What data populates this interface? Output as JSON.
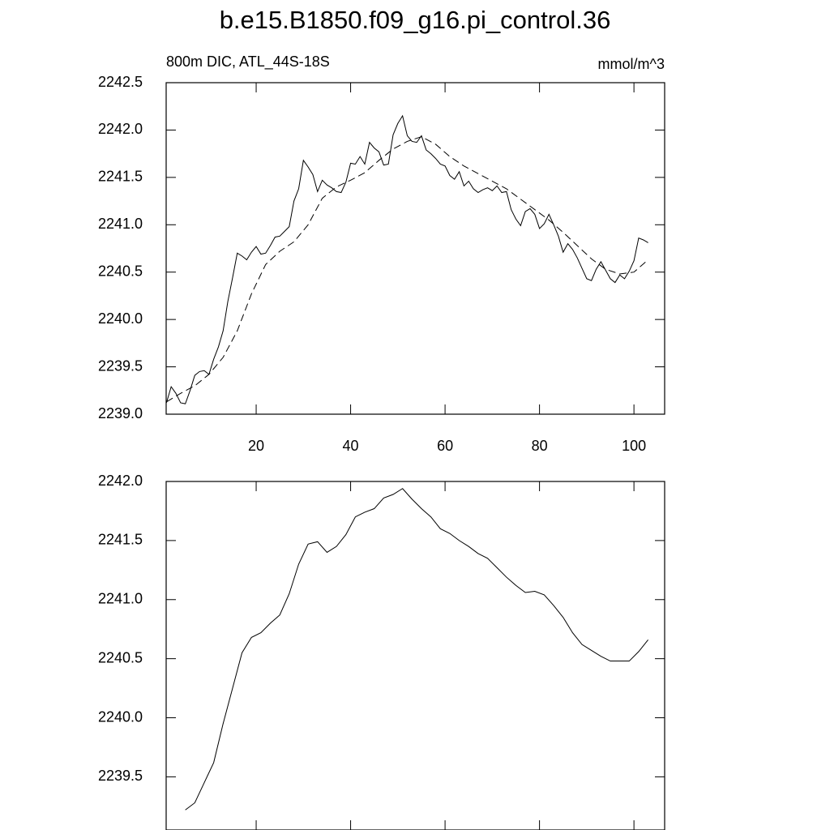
{
  "chart_data": [
    {
      "type": "line",
      "title": "b.e15.B1850.f09_g16.pi_control.36",
      "left_string": "800m DIC, ATL_44S-18S",
      "right_string": "mmol/m^3",
      "xlim": [
        0.94,
        106.5
      ],
      "xticks": [
        20,
        40,
        60,
        80,
        100
      ],
      "ylim": [
        2239.0,
        2242.5
      ],
      "yticks": [
        {
          "value": 2239.0,
          "label": "2239.0"
        },
        2239.5,
        {
          "value": 2240.0,
          "label": "2240.0"
        },
        2240.5,
        {
          "value": 2241.0,
          "label": "2241.0"
        },
        2241.5,
        {
          "value": 2242.0,
          "label": "2242.0"
        },
        2242.5
      ],
      "series": [
        {
          "color": "#000000",
          "linestyle": "solid",
          "x": [
            1,
            2,
            3,
            4,
            5,
            6,
            7,
            8,
            9,
            10,
            11,
            12,
            13,
            14,
            15,
            16,
            17,
            18,
            19,
            20,
            21,
            22,
            23,
            24,
            25,
            26,
            27,
            28,
            29,
            30,
            31,
            32,
            33,
            34,
            35,
            36,
            37,
            38,
            39,
            40,
            41,
            42,
            43,
            44,
            45,
            46,
            47,
            48,
            49,
            50,
            51,
            52,
            53,
            54,
            55,
            56,
            57,
            58,
            59,
            60,
            61,
            62,
            63,
            64,
            65,
            66,
            67,
            68,
            69,
            70,
            71,
            72,
            73,
            74,
            75,
            76,
            77,
            78,
            79,
            80,
            81,
            82,
            83,
            84,
            85,
            86,
            87,
            88,
            89,
            90,
            91,
            92,
            93,
            94,
            95,
            96,
            97,
            98,
            99,
            100,
            101,
            102,
            103
          ],
          "values": [
            2239.12,
            2239.29,
            2239.22,
            2239.12,
            2239.11,
            2239.25,
            2239.41,
            2239.45,
            2239.46,
            2239.42,
            2239.58,
            2239.71,
            2239.88,
            2240.19,
            2240.44,
            2240.7,
            2240.67,
            2240.63,
            2240.71,
            2240.77,
            2240.69,
            2240.7,
            2240.78,
            2240.87,
            2240.88,
            2240.93,
            2240.98,
            2241.25,
            2241.38,
            2241.68,
            2241.61,
            2241.53,
            2241.35,
            2241.47,
            2241.42,
            2241.39,
            2241.35,
            2241.34,
            2241.45,
            2241.65,
            2241.64,
            2241.72,
            2241.64,
            2241.87,
            2241.81,
            2241.77,
            2241.63,
            2241.64,
            2241.95,
            2242.07,
            2242.15,
            2241.94,
            2241.88,
            2241.87,
            2241.94,
            2241.79,
            2241.75,
            2241.7,
            2241.64,
            2241.62,
            2241.52,
            2241.48,
            2241.56,
            2241.41,
            2241.46,
            2241.38,
            2241.34,
            2241.37,
            2241.39,
            2241.36,
            2241.41,
            2241.34,
            2241.35,
            2241.16,
            2241.06,
            2240.99,
            2241.14,
            2241.17,
            2241.11,
            2240.96,
            2241.01,
            2241.11,
            2241.0,
            2240.88,
            2240.71,
            2240.8,
            2240.74,
            2240.65,
            2240.54,
            2240.43,
            2240.41,
            2240.53,
            2240.61,
            2240.52,
            2240.43,
            2240.39,
            2240.47,
            2240.43,
            2240.51,
            2240.62,
            2240.86,
            2240.84,
            2240.81
          ]
        },
        {
          "color": "#000000",
          "linestyle": "dashed",
          "x": [
            1,
            4,
            7,
            10,
            13,
            16,
            19,
            22,
            25,
            28,
            31,
            34,
            37,
            40,
            43,
            46,
            49,
            52,
            55,
            58,
            61,
            64,
            67,
            70,
            73,
            76,
            79,
            82,
            85,
            88,
            91,
            94,
            97,
            100,
            103
          ],
          "values": [
            2239.13,
            2239.22,
            2239.3,
            2239.42,
            2239.6,
            2239.88,
            2240.27,
            2240.58,
            2240.72,
            2240.82,
            2241.0,
            2241.28,
            2241.4,
            2241.47,
            2241.55,
            2241.68,
            2241.8,
            2241.88,
            2241.93,
            2241.85,
            2241.72,
            2241.62,
            2241.54,
            2241.46,
            2241.38,
            2241.27,
            2241.16,
            2241.05,
            2240.92,
            2240.78,
            2240.64,
            2240.53,
            2240.48,
            2240.5,
            2240.63
          ]
        }
      ]
    },
    {
      "type": "line",
      "xlim": [
        0.94,
        106.5
      ],
      "xticks": [
        20,
        40,
        60,
        80,
        100
      ],
      "ylim": [
        2239.05,
        2242.0
      ],
      "yticks": [
        2239.5,
        {
          "value": 2240.0,
          "label": "2240.0"
        },
        2240.5,
        {
          "value": 2241.0,
          "label": "2241.0"
        },
        2241.5,
        {
          "value": 2242.0,
          "label": "2242.0"
        }
      ],
      "series": [
        {
          "color": "#000000",
          "linestyle": "solid",
          "x": [
            5,
            7,
            9,
            11,
            13,
            15,
            17,
            19,
            21,
            23,
            25,
            27,
            29,
            31,
            33,
            35,
            37,
            39,
            41,
            43,
            45,
            47,
            49,
            51,
            53,
            55,
            57,
            59,
            61,
            63,
            65,
            67,
            69,
            71,
            73,
            75,
            77,
            79,
            81,
            83,
            85,
            87,
            89,
            91,
            93,
            95,
            97,
            99,
            101,
            103
          ],
          "values": [
            2239.22,
            2239.28,
            2239.45,
            2239.62,
            2239.95,
            2240.25,
            2240.55,
            2240.68,
            2240.72,
            2240.8,
            2240.87,
            2241.05,
            2241.3,
            2241.47,
            2241.49,
            2241.4,
            2241.45,
            2241.55,
            2241.7,
            2241.74,
            2241.77,
            2241.86,
            2241.89,
            2241.94,
            2241.85,
            2241.77,
            2241.7,
            2241.6,
            2241.56,
            2241.5,
            2241.45,
            2241.39,
            2241.35,
            2241.27,
            2241.19,
            2241.12,
            2241.06,
            2241.07,
            2241.04,
            2240.95,
            2240.85,
            2240.72,
            2240.62,
            2240.57,
            2240.52,
            2240.48,
            2240.48,
            2240.48,
            2240.56,
            2240.66
          ]
        }
      ]
    }
  ]
}
